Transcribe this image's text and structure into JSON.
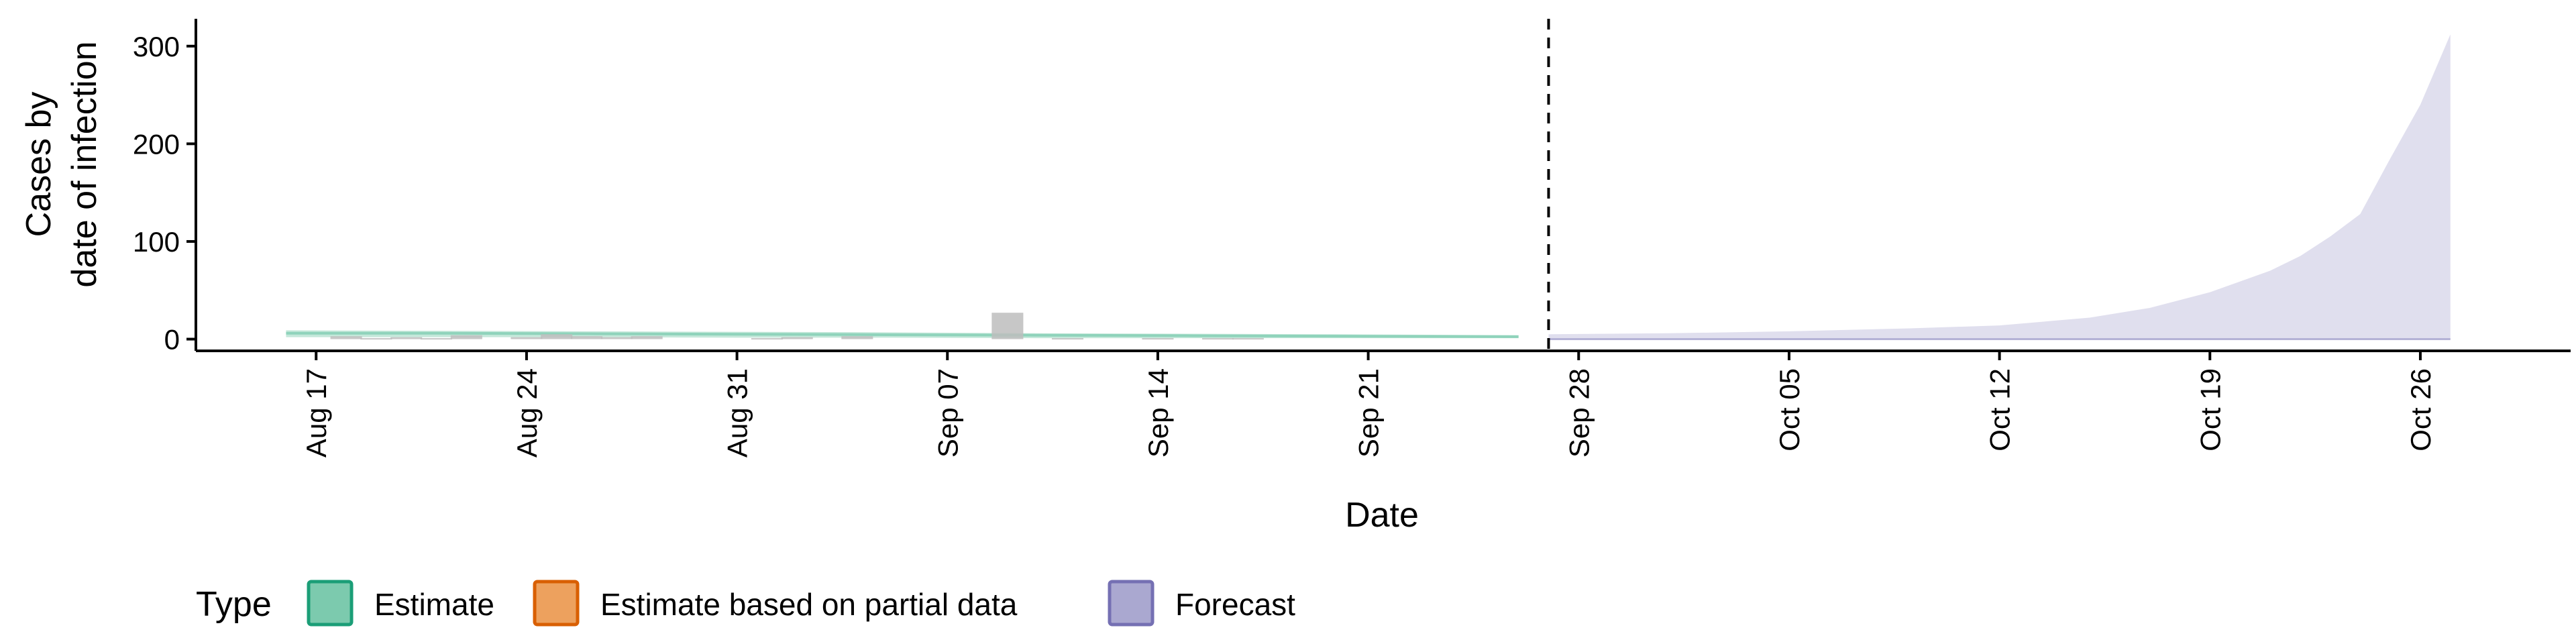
{
  "chart_data": {
    "type": "area",
    "xlabel": "Date",
    "ylabel_lines": [
      "Cases by",
      "date of infection"
    ],
    "x_tick_labels": [
      "Aug 17",
      "Aug 24",
      "Aug 31",
      "Sep 07",
      "Sep 14",
      "Sep 21",
      "Sep 28",
      "Oct 05",
      "Oct 12",
      "Oct 19",
      "Oct 26"
    ],
    "x_tick_dates": [
      "2020-08-17",
      "2020-08-24",
      "2020-08-31",
      "2020-09-07",
      "2020-09-14",
      "2020-09-21",
      "2020-09-28",
      "2020-10-05",
      "2020-10-12",
      "2020-10-19",
      "2020-10-26"
    ],
    "y_ticks": [
      0,
      100,
      200,
      300
    ],
    "ylim": [
      -12,
      328
    ],
    "xlim": [
      "2020-08-13",
      "2020-10-31"
    ],
    "forecast_start": "2020-09-27",
    "grid": false,
    "legend": {
      "title": "Type",
      "position": "bottom-left",
      "items": [
        {
          "label": "Estimate",
          "fill": "#7ccaae",
          "stroke": "#1b9e77"
        },
        {
          "label": "Estimate based on partial data",
          "fill": "#eda15e",
          "stroke": "#d95f02"
        },
        {
          "label": "Forecast",
          "fill": "#aaa8d0",
          "stroke": "#7570b3"
        }
      ]
    },
    "colors": {
      "estimate_band": "#b5e2d1",
      "estimate_line": "#8fd3bb",
      "forecast_band": "#e0dfee",
      "observed_bar": "#bdbdbd",
      "axis": "#000000"
    },
    "observed_cases": {
      "dates": [
        "2020-08-18",
        "2020-08-19",
        "2020-08-20",
        "2020-08-21",
        "2020-08-22",
        "2020-08-24",
        "2020-08-25",
        "2020-08-26",
        "2020-08-27",
        "2020-08-28",
        "2020-09-01",
        "2020-09-02",
        "2020-09-04",
        "2020-09-09",
        "2020-09-11",
        "2020-09-14",
        "2020-09-16",
        "2020-09-17"
      ],
      "values": [
        3,
        1,
        2,
        1,
        4,
        2,
        5,
        3,
        2,
        3,
        1,
        2,
        3,
        27,
        1,
        1,
        1,
        1
      ]
    },
    "estimate": {
      "dates": [
        "2020-08-16",
        "2020-08-21",
        "2020-08-26",
        "2020-08-31",
        "2020-09-05",
        "2020-09-10",
        "2020-09-15",
        "2020-09-20",
        "2020-09-26"
      ],
      "median": [
        6,
        6,
        5.5,
        5,
        4.5,
        4,
        3.5,
        3,
        2.5
      ],
      "lower": [
        2,
        2,
        2,
        1.5,
        1.5,
        1,
        1,
        1,
        1
      ],
      "upper": [
        9,
        8.5,
        8,
        7.5,
        7,
        6,
        5.5,
        5,
        4
      ]
    },
    "forecast": {
      "dates": [
        "2020-09-27",
        "2020-10-01",
        "2020-10-05",
        "2020-10-09",
        "2020-10-12",
        "2020-10-15",
        "2020-10-17",
        "2020-10-19",
        "2020-10-21",
        "2020-10-22",
        "2020-10-23",
        "2020-10-24",
        "2020-10-25",
        "2020-10-26",
        "2020-10-27"
      ],
      "lower": [
        0,
        0,
        0,
        0,
        0,
        0,
        0,
        0,
        0,
        0,
        0,
        0,
        0,
        0,
        0
      ],
      "upper": [
        5,
        6,
        8,
        11,
        14,
        22,
        32,
        48,
        70,
        85,
        105,
        128,
        185,
        240,
        312
      ]
    }
  }
}
